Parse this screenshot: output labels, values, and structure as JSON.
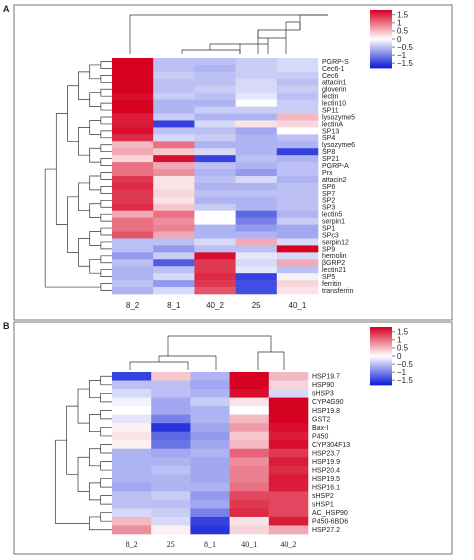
{
  "chart_data": [
    {
      "type": "heatmap",
      "panel": "A",
      "columns": [
        "8_2",
        "8_1",
        "40_2",
        "25",
        "40_1"
      ],
      "rows": [
        "PGRP-S",
        "Cec6-1",
        "Cec6",
        "attacin1",
        "gloverin",
        "lectin",
        "lectin10",
        "SP11",
        "lysozyme5",
        "lectinA",
        "SP13",
        "SP4",
        "lysozyme6",
        "SP8",
        "SP21",
        "PGRP-A",
        "Prx",
        "attacin2",
        "SP6",
        "SP7",
        "SP2",
        "SP3",
        "lectin5",
        "serpin1",
        "SP1",
        "SPc3",
        "serpin12",
        "SP9",
        "hemolin",
        "βGRP2",
        "lectin21",
        "SP5",
        "ferritin",
        "transferrin"
      ],
      "values": [
        [
          1.8,
          -0.5,
          -0.5,
          -0.4,
          -0.3
        ],
        [
          1.8,
          -0.5,
          -0.6,
          -0.4,
          -0.3
        ],
        [
          1.8,
          -0.4,
          -0.5,
          -0.4,
          -0.4
        ],
        [
          1.8,
          -0.5,
          -0.5,
          -0.3,
          -0.5
        ],
        [
          1.8,
          -0.5,
          -0.4,
          -0.3,
          -0.4
        ],
        [
          1.7,
          -0.4,
          -0.5,
          -0.2,
          -0.5
        ],
        [
          1.8,
          -0.6,
          -0.6,
          0.0,
          -0.4
        ],
        [
          1.8,
          -0.6,
          -0.4,
          -0.4,
          -0.4
        ],
        [
          1.6,
          -0.4,
          -0.6,
          -0.6,
          0.5
        ],
        [
          1.6,
          -1.5,
          -0.3,
          0.2,
          0.3
        ],
        [
          1.7,
          -0.5,
          -0.5,
          -0.7,
          0.0
        ],
        [
          1.5,
          -0.3,
          -0.4,
          -0.6,
          -0.5
        ],
        [
          0.5,
          1.0,
          -0.6,
          -0.6,
          -0.6
        ],
        [
          0.6,
          0.4,
          -0.3,
          -0.6,
          -1.5
        ],
        [
          0.3,
          1.7,
          -1.5,
          -0.5,
          -0.6
        ],
        [
          1.0,
          0.6,
          -0.5,
          -0.6,
          -0.5
        ],
        [
          1.0,
          0.8,
          -0.6,
          -0.8,
          -0.5
        ],
        [
          1.4,
          0.2,
          -0.5,
          -0.3,
          -0.6
        ],
        [
          1.5,
          0.2,
          -0.6,
          -0.6,
          -0.5
        ],
        [
          1.4,
          0.3,
          -0.5,
          -0.5,
          -0.5
        ],
        [
          1.4,
          0.2,
          -0.6,
          -0.6,
          -0.5
        ],
        [
          1.5,
          0.4,
          -0.4,
          -0.6,
          -0.5
        ],
        [
          0.6,
          1.0,
          0.0,
          -1.2,
          -0.6
        ],
        [
          1.0,
          0.8,
          0.0,
          -1.0,
          -0.4
        ],
        [
          1.0,
          0.9,
          -0.6,
          -0.8,
          -0.7
        ],
        [
          1.2,
          0.6,
          -0.6,
          -0.6,
          -0.7
        ],
        [
          -0.5,
          -0.5,
          -0.3,
          0.6,
          -0.3
        ],
        [
          -0.5,
          -0.8,
          -0.5,
          -0.5,
          1.8
        ],
        [
          -0.8,
          -0.4,
          1.7,
          -0.2,
          -0.3
        ],
        [
          -0.5,
          -1.3,
          1.4,
          -0.3,
          0.6
        ],
        [
          -0.6,
          -0.5,
          1.4,
          -0.2,
          -0.5
        ],
        [
          -0.6,
          -0.3,
          1.5,
          -1.5,
          -0.1
        ],
        [
          -0.5,
          -0.8,
          1.4,
          -1.4,
          0.3
        ],
        [
          -0.6,
          -0.3,
          1.2,
          -1.4,
          0.2
        ]
      ],
      "legend_ticks": [
        "1.5",
        "1",
        "0.5",
        "0",
        "−0.5",
        "−1",
        "−1.5"
      ],
      "legend_range": [
        -1.8,
        1.8
      ]
    },
    {
      "type": "heatmap",
      "panel": "B",
      "columns": [
        "8_2",
        "25",
        "8_1",
        "40_1",
        "40_2"
      ],
      "rows": [
        "HSP19.7",
        "HSP90",
        "sHSP3",
        "CYP4G90",
        "HSP19.8",
        "GST2",
        "Bax-I",
        "P450",
        "CYP304F13",
        "HSP23.7",
        "HSP19.9",
        "HSP20.4",
        "HSP19.5",
        "HSP16.1",
        "sHSP2",
        "sHSP1",
        "AC_HSP90",
        "P450-6BD6",
        "HSP27.2"
      ],
      "values": [
        [
          -1.5,
          0.4,
          -0.6,
          1.8,
          0.5
        ],
        [
          -0.5,
          -0.5,
          -0.7,
          1.9,
          0.3
        ],
        [
          -0.3,
          -0.5,
          -0.6,
          1.7,
          -0.3
        ],
        [
          -0.1,
          -0.7,
          -0.4,
          0.2,
          1.8
        ],
        [
          0.0,
          -0.7,
          -0.6,
          0.0,
          1.8
        ],
        [
          -0.2,
          -1.0,
          -0.6,
          0.5,
          1.8
        ],
        [
          0.1,
          -1.6,
          -0.7,
          0.7,
          1.7
        ],
        [
          0.2,
          -1.2,
          -0.8,
          0.4,
          1.6
        ],
        [
          0.1,
          -1.1,
          -0.7,
          0.5,
          1.7
        ],
        [
          -0.6,
          -0.7,
          -0.6,
          1.1,
          1.4
        ],
        [
          -0.6,
          -0.6,
          -0.7,
          0.8,
          1.6
        ],
        [
          -0.6,
          -0.5,
          -0.7,
          0.9,
          1.5
        ],
        [
          -0.6,
          -0.6,
          -0.7,
          0.9,
          1.6
        ],
        [
          -0.7,
          -0.6,
          -0.6,
          1.0,
          1.6
        ],
        [
          -0.5,
          -0.4,
          -0.8,
          1.3,
          1.3
        ],
        [
          -0.5,
          -0.5,
          -0.7,
          1.4,
          1.3
        ],
        [
          -0.3,
          -0.4,
          -1.0,
          1.5,
          1.3
        ],
        [
          0.5,
          -0.3,
          -1.5,
          0.2,
          1.6
        ],
        [
          0.8,
          0.1,
          -1.6,
          0.3,
          0.6
        ]
      ],
      "legend_ticks": [
        "1.5",
        "1",
        "0.5",
        "0",
        "−0.5",
        "−1",
        "−1.5"
      ],
      "legend_range": [
        -1.8,
        1.8
      ]
    }
  ]
}
